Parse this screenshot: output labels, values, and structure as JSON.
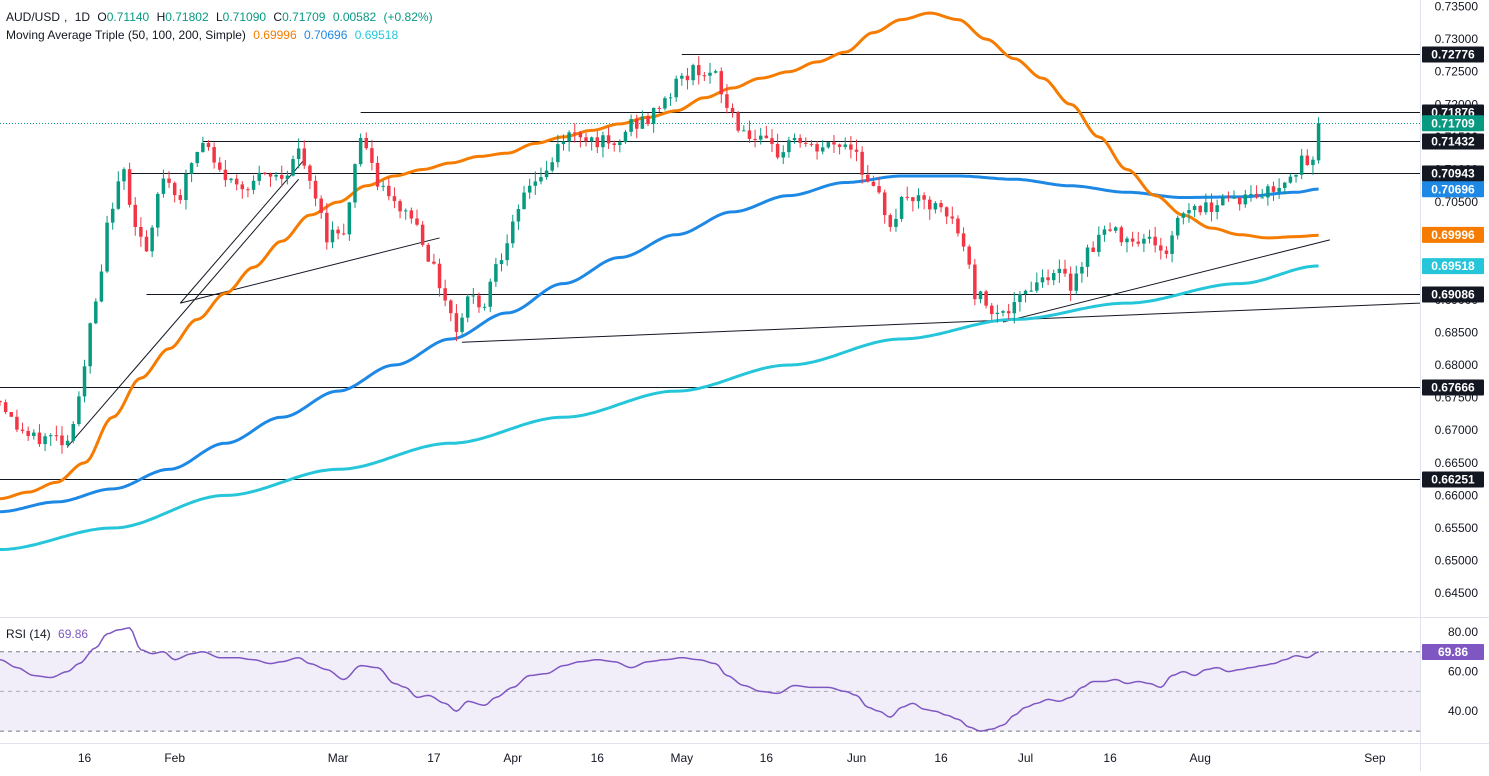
{
  "header": {
    "symbol": "AUD/USD",
    "interval": "1D",
    "open_label": "O",
    "open": "0.71140",
    "high_label": "H",
    "high": "0.71802",
    "low_label": "L",
    "low": "0.71090",
    "close_label": "C",
    "close": "0.71709",
    "change": "0.00582",
    "change_pct": "(+0.82%)"
  },
  "ma_legend": {
    "label": "Moving Average Triple (50, 100, 200, Simple)",
    "ma50": "0.69996",
    "ma100": "0.70696",
    "ma200": "0.69518"
  },
  "rsi_legend": {
    "label": "RSI (14)",
    "value": "69.86"
  },
  "colors": {
    "up": "#089981",
    "down": "#f23645",
    "ma50": "#f57c00",
    "ma100": "#1e88e5",
    "ma200": "#26c6da",
    "rsi": "#7e57c2",
    "level": "#131722",
    "trend": "#131722"
  },
  "chart_data": {
    "type": "candlestick",
    "y_ticks": [
      "0.73500",
      "0.73000",
      "0.72500",
      "0.72000",
      "0.71500",
      "0.71000",
      "0.70500",
      "0.70000",
      "0.69500",
      "0.69000",
      "0.68500",
      "0.68000",
      "0.67500",
      "0.67000",
      "0.66500",
      "0.66000",
      "0.65500",
      "0.65000",
      "0.64500"
    ],
    "x_ticks": [
      {
        "label": "16",
        "day": 15
      },
      {
        "label": "Feb",
        "day": 31
      },
      {
        "label": "Mar",
        "day": 60
      },
      {
        "label": "17",
        "day": 77
      },
      {
        "label": "Apr",
        "day": 91
      },
      {
        "label": "16",
        "day": 106
      },
      {
        "label": "May",
        "day": 121
      },
      {
        "label": "16",
        "day": 136
      },
      {
        "label": "Jun",
        "day": 152
      },
      {
        "label": "16",
        "day": 167
      },
      {
        "label": "Jul",
        "day": 182
      },
      {
        "label": "16",
        "day": 197
      },
      {
        "label": "Aug",
        "day": 213
      },
      {
        "label": "Sep",
        "day": 244
      }
    ],
    "ylim": [
      0.6415,
      0.736
    ],
    "xlim": [
      0,
      252
    ],
    "rsi_ylim": [
      25,
      86
    ],
    "rsi_ticks": [
      "80.00",
      "60.00",
      "40.00"
    ],
    "rsi_bands": {
      "upper": 70,
      "middle": 50,
      "lower": 30
    },
    "horizontal_levels": [
      {
        "value": 0.72776,
        "label": "0.72776",
        "from_day": 121
      },
      {
        "value": 0.71876,
        "label": "0.71876",
        "from_day": 64
      },
      {
        "value": 0.71432,
        "label": "0.71432",
        "from_day": 36
      },
      {
        "value": 0.70943,
        "label": "0.70943",
        "from_day": 23
      },
      {
        "value": 0.69086,
        "label": "0.69086",
        "from_day": 26
      },
      {
        "value": 0.67666,
        "label": "0.67666",
        "from_day": 0
      },
      {
        "value": 0.66251,
        "label": "0.66251",
        "from_day": 0
      }
    ],
    "price_labels": [
      {
        "value": 0.71709,
        "label": "0.71709",
        "color": "#089981"
      },
      {
        "value": 0.70696,
        "label": "0.70696",
        "color": "#1e88e5"
      },
      {
        "value": 0.69996,
        "label": "0.69996",
        "color": "#f57c00"
      },
      {
        "value": 0.69518,
        "label": "0.69518",
        "color": "#26c6da"
      }
    ],
    "trendlines": [
      {
        "x1": 12,
        "y1": 0.6675,
        "x2": 53,
        "y2": 0.7085
      },
      {
        "x1": 32,
        "y1": 0.6895,
        "x2": 54,
        "y2": 0.7115
      },
      {
        "x1": 32,
        "y1": 0.6895,
        "x2": 78,
        "y2": 0.6995
      },
      {
        "x1": 82,
        "y1": 0.6835,
        "x2": 252,
        "y2": 0.6895
      },
      {
        "x1": 178,
        "y1": 0.6866,
        "x2": 236,
        "y2": 0.6992
      }
    ],
    "price_anchors": [
      [
        0,
        0.6745
      ],
      [
        3,
        0.6705
      ],
      [
        6,
        0.6685
      ],
      [
        9,
        0.669
      ],
      [
        12,
        0.6685
      ],
      [
        14,
        0.6755
      ],
      [
        17,
        0.6895
      ],
      [
        20,
        0.705
      ],
      [
        22,
        0.7095
      ],
      [
        24,
        0.702
      ],
      [
        26,
        0.697
      ],
      [
        29,
        0.709
      ],
      [
        32,
        0.706
      ],
      [
        34,
        0.711
      ],
      [
        36,
        0.714
      ],
      [
        39,
        0.7095
      ],
      [
        42,
        0.7075
      ],
      [
        46,
        0.7085
      ],
      [
        50,
        0.709
      ],
      [
        53,
        0.7125
      ],
      [
        56,
        0.7055
      ],
      [
        58,
        0.7
      ],
      [
        61,
        0.701
      ],
      [
        64,
        0.715
      ],
      [
        67,
        0.708
      ],
      [
        70,
        0.7045
      ],
      [
        73,
        0.703
      ],
      [
        75,
        0.6995
      ],
      [
        77,
        0.6945
      ],
      [
        79,
        0.6905
      ],
      [
        81,
        0.6855
      ],
      [
        83,
        0.6905
      ],
      [
        86,
        0.6895
      ],
      [
        88,
        0.696
      ],
      [
        91,
        0.701
      ],
      [
        94,
        0.708
      ],
      [
        97,
        0.7095
      ],
      [
        100,
        0.715
      ],
      [
        103,
        0.7155
      ],
      [
        106,
        0.7145
      ],
      [
        109,
        0.713
      ],
      [
        112,
        0.717
      ],
      [
        115,
        0.7175
      ],
      [
        118,
        0.721
      ],
      [
        121,
        0.724
      ],
      [
        124,
        0.7255
      ],
      [
        127,
        0.724
      ],
      [
        129,
        0.7195
      ],
      [
        132,
        0.716
      ],
      [
        135,
        0.714
      ],
      [
        138,
        0.7125
      ],
      [
        141,
        0.715
      ],
      [
        144,
        0.713
      ],
      [
        147,
        0.7135
      ],
      [
        150,
        0.714
      ],
      [
        152,
        0.713
      ],
      [
        154,
        0.7075
      ],
      [
        156,
        0.7055
      ],
      [
        158,
        0.702
      ],
      [
        161,
        0.706
      ],
      [
        164,
        0.7045
      ],
      [
        166,
        0.704
      ],
      [
        169,
        0.702
      ],
      [
        171,
        0.6985
      ],
      [
        173,
        0.691
      ],
      [
        176,
        0.689
      ],
      [
        178,
        0.688
      ],
      [
        180,
        0.6885
      ],
      [
        182,
        0.6915
      ],
      [
        184,
        0.693
      ],
      [
        187,
        0.6945
      ],
      [
        190,
        0.6925
      ],
      [
        193,
        0.6975
      ],
      [
        196,
        0.7005
      ],
      [
        199,
        0.7
      ],
      [
        202,
        0.6995
      ],
      [
        205,
        0.699
      ],
      [
        207,
        0.6965
      ],
      [
        209,
        0.703
      ],
      [
        212,
        0.7045
      ],
      [
        214,
        0.704
      ],
      [
        217,
        0.706
      ],
      [
        220,
        0.7055
      ],
      [
        223,
        0.706
      ],
      [
        226,
        0.707
      ],
      [
        229,
        0.7095
      ],
      [
        231,
        0.711
      ],
      [
        233,
        0.7108
      ],
      [
        234,
        0.7171
      ]
    ],
    "ma50_anchors": [
      [
        0,
        0.6595
      ],
      [
        5,
        0.6605
      ],
      [
        10,
        0.662
      ],
      [
        15,
        0.665
      ],
      [
        20,
        0.672
      ],
      [
        25,
        0.678
      ],
      [
        30,
        0.6825
      ],
      [
        35,
        0.687
      ],
      [
        40,
        0.691
      ],
      [
        45,
        0.695
      ],
      [
        50,
        0.699
      ],
      [
        55,
        0.703
      ],
      [
        60,
        0.705
      ],
      [
        65,
        0.7075
      ],
      [
        70,
        0.709
      ],
      [
        75,
        0.71
      ],
      [
        80,
        0.711
      ],
      [
        85,
        0.712
      ],
      [
        90,
        0.7125
      ],
      [
        95,
        0.714
      ],
      [
        100,
        0.715
      ],
      [
        105,
        0.716
      ],
      [
        110,
        0.717
      ],
      [
        115,
        0.718
      ],
      [
        120,
        0.719
      ],
      [
        125,
        0.721
      ],
      [
        130,
        0.7225
      ],
      [
        135,
        0.724
      ],
      [
        140,
        0.725
      ],
      [
        145,
        0.7265
      ],
      [
        150,
        0.728
      ],
      [
        155,
        0.731
      ],
      [
        160,
        0.733
      ],
      [
        165,
        0.734
      ],
      [
        170,
        0.733
      ],
      [
        175,
        0.73
      ],
      [
        180,
        0.727
      ],
      [
        185,
        0.724
      ],
      [
        190,
        0.72
      ],
      [
        195,
        0.715
      ],
      [
        200,
        0.71
      ],
      [
        205,
        0.706
      ],
      [
        210,
        0.703
      ],
      [
        215,
        0.701
      ],
      [
        220,
        0.7
      ],
      [
        225,
        0.6995
      ],
      [
        230,
        0.6997
      ],
      [
        234,
        0.6999
      ]
    ],
    "ma100_anchors": [
      [
        0,
        0.6575
      ],
      [
        10,
        0.659
      ],
      [
        20,
        0.661
      ],
      [
        30,
        0.664
      ],
      [
        40,
        0.668
      ],
      [
        50,
        0.672
      ],
      [
        60,
        0.676
      ],
      [
        70,
        0.68
      ],
      [
        80,
        0.684
      ],
      [
        90,
        0.688
      ],
      [
        100,
        0.6925
      ],
      [
        110,
        0.6965
      ],
      [
        120,
        0.7
      ],
      [
        130,
        0.7035
      ],
      [
        140,
        0.706
      ],
      [
        150,
        0.708
      ],
      [
        160,
        0.709
      ],
      [
        170,
        0.709
      ],
      [
        180,
        0.7085
      ],
      [
        190,
        0.7075
      ],
      [
        200,
        0.7065
      ],
      [
        210,
        0.7057
      ],
      [
        220,
        0.7058
      ],
      [
        230,
        0.7065
      ],
      [
        234,
        0.707
      ]
    ],
    "ma200_anchors": [
      [
        0,
        0.6517
      ],
      [
        20,
        0.655
      ],
      [
        40,
        0.66
      ],
      [
        60,
        0.664
      ],
      [
        80,
        0.668
      ],
      [
        100,
        0.672
      ],
      [
        120,
        0.676
      ],
      [
        140,
        0.68
      ],
      [
        160,
        0.684
      ],
      [
        180,
        0.687
      ],
      [
        200,
        0.6895
      ],
      [
        220,
        0.6925
      ],
      [
        234,
        0.6952
      ]
    ],
    "rsi_anchors": [
      [
        0,
        66
      ],
      [
        3,
        62
      ],
      [
        6,
        58
      ],
      [
        9,
        57
      ],
      [
        12,
        60
      ],
      [
        14,
        64
      ],
      [
        17,
        72
      ],
      [
        19,
        79
      ],
      [
        21,
        81
      ],
      [
        23,
        82
      ],
      [
        25,
        71
      ],
      [
        27,
        69
      ],
      [
        29,
        70
      ],
      [
        31,
        66
      ],
      [
        34,
        69
      ],
      [
        36,
        70
      ],
      [
        39,
        67
      ],
      [
        42,
        67
      ],
      [
        45,
        66
      ],
      [
        48,
        64
      ],
      [
        50,
        65
      ],
      [
        53,
        67
      ],
      [
        55,
        64
      ],
      [
        58,
        61
      ],
      [
        61,
        56
      ],
      [
        64,
        63
      ],
      [
        67,
        62
      ],
      [
        70,
        54
      ],
      [
        72,
        52
      ],
      [
        74,
        47
      ],
      [
        76,
        48
      ],
      [
        79,
        44
      ],
      [
        81,
        40
      ],
      [
        83,
        45
      ],
      [
        86,
        43
      ],
      [
        88,
        47
      ],
      [
        91,
        52
      ],
      [
        94,
        58
      ],
      [
        97,
        59
      ],
      [
        100,
        63
      ],
      [
        103,
        65
      ],
      [
        106,
        66
      ],
      [
        109,
        65
      ],
      [
        112,
        62
      ],
      [
        115,
        65
      ],
      [
        118,
        66
      ],
      [
        121,
        67
      ],
      [
        124,
        66
      ],
      [
        127,
        64
      ],
      [
        129,
        58
      ],
      [
        132,
        53
      ],
      [
        135,
        50
      ],
      [
        138,
        49
      ],
      [
        141,
        53
      ],
      [
        144,
        52
      ],
      [
        147,
        52
      ],
      [
        150,
        50
      ],
      [
        152,
        48
      ],
      [
        154,
        42
      ],
      [
        156,
        40
      ],
      [
        158,
        37
      ],
      [
        160,
        42
      ],
      [
        162,
        44
      ],
      [
        164,
        41
      ],
      [
        166,
        40
      ],
      [
        168,
        38
      ],
      [
        170,
        36
      ],
      [
        172,
        32
      ],
      [
        174,
        30
      ],
      [
        176,
        31
      ],
      [
        178,
        33
      ],
      [
        180,
        38
      ],
      [
        182,
        42
      ],
      [
        184,
        44
      ],
      [
        186,
        46
      ],
      [
        188,
        45
      ],
      [
        190,
        47
      ],
      [
        192,
        52
      ],
      [
        194,
        55
      ],
      [
        196,
        55
      ],
      [
        198,
        56
      ],
      [
        200,
        54
      ],
      [
        202,
        55
      ],
      [
        204,
        54
      ],
      [
        206,
        52
      ],
      [
        208,
        58
      ],
      [
        210,
        60
      ],
      [
        212,
        58
      ],
      [
        214,
        61
      ],
      [
        216,
        62
      ],
      [
        218,
        60
      ],
      [
        220,
        61
      ],
      [
        222,
        62
      ],
      [
        224,
        63
      ],
      [
        226,
        64
      ],
      [
        228,
        66
      ],
      [
        230,
        68
      ],
      [
        232,
        67
      ],
      [
        234,
        69.86
      ]
    ]
  }
}
